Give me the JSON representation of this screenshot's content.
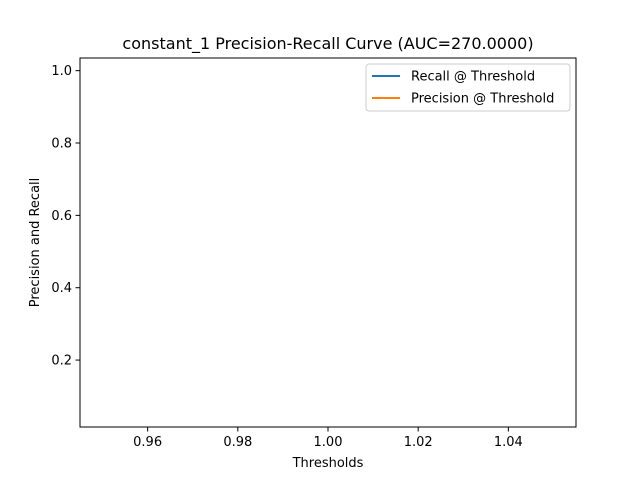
{
  "chart_data": {
    "type": "line",
    "title": "constant_1 Precision-Recall Curve (AUC=270.0000)",
    "xlabel": "Thresholds",
    "ylabel": "Precision and Recall",
    "xlim": [
      0.945,
      1.055
    ],
    "ylim": [
      0.015,
      1.035
    ],
    "xticks": [
      0.96,
      0.98,
      1.0,
      1.02,
      1.04
    ],
    "xtick_labels": [
      "0.96",
      "0.98",
      "1.00",
      "1.02",
      "1.04"
    ],
    "yticks": [
      0.2,
      0.4,
      0.6,
      0.8,
      1.0
    ],
    "ytick_labels": [
      "0.2",
      "0.4",
      "0.6",
      "0.8",
      "1.0"
    ],
    "grid": false,
    "legend_position": "top-right",
    "series": [
      {
        "name": "Recall @ Threshold",
        "color": "#1f77b4",
        "x": [],
        "y": []
      },
      {
        "name": "Precision @ Threshold",
        "color": "#ff7f0e",
        "x": [],
        "y": []
      }
    ]
  }
}
